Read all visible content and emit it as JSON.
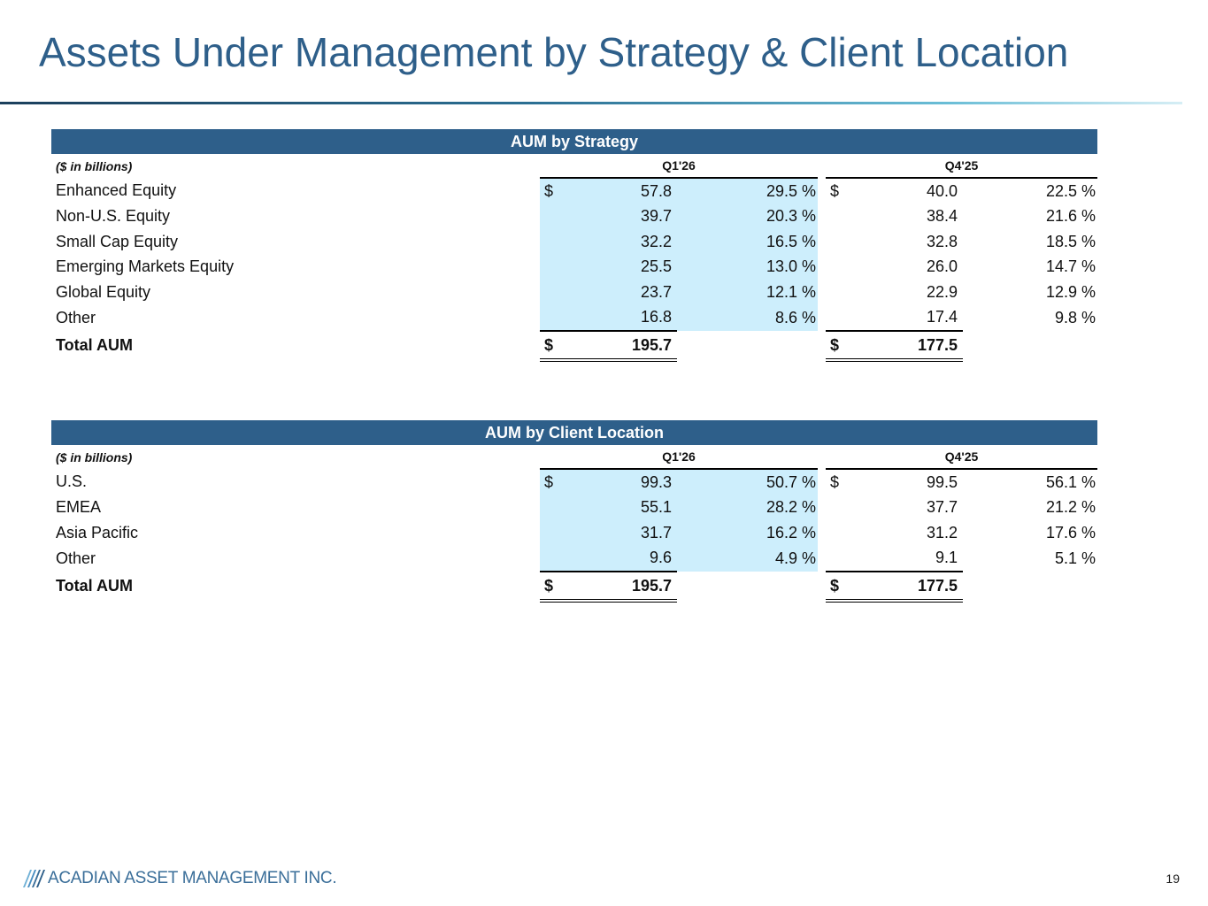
{
  "title": "Assets Under Management by Strategy & Client Location",
  "colors": {
    "title": "#2e5f8a",
    "banner": "#2e5f8a",
    "highlight": "#cdeefc"
  },
  "strategy_table": {
    "banner": "AUM by Strategy",
    "unit_note": "($ in billions)",
    "periods": [
      "Q1'26",
      "Q4'25"
    ],
    "rows": [
      {
        "label": "Enhanced Equity",
        "q1_dollar": "$",
        "q1_value": "57.8",
        "q1_pct": "29.5 %",
        "q4_dollar": "$",
        "q4_value": "40.0",
        "q4_pct": "22.5 %"
      },
      {
        "label": "Non-U.S. Equity",
        "q1_dollar": "",
        "q1_value": "39.7",
        "q1_pct": "20.3 %",
        "q4_dollar": "",
        "q4_value": "38.4",
        "q4_pct": "21.6 %"
      },
      {
        "label": "Small Cap Equity",
        "q1_dollar": "",
        "q1_value": "32.2",
        "q1_pct": "16.5 %",
        "q4_dollar": "",
        "q4_value": "32.8",
        "q4_pct": "18.5 %"
      },
      {
        "label": "Emerging Markets Equity",
        "q1_dollar": "",
        "q1_value": "25.5",
        "q1_pct": "13.0 %",
        "q4_dollar": "",
        "q4_value": "26.0",
        "q4_pct": "14.7 %"
      },
      {
        "label": "Global Equity",
        "q1_dollar": "",
        "q1_value": "23.7",
        "q1_pct": "12.1 %",
        "q4_dollar": "",
        "q4_value": "22.9",
        "q4_pct": "12.9 %"
      },
      {
        "label": "Other",
        "q1_dollar": "",
        "q1_value": "16.8",
        "q1_pct": "8.6 %",
        "q4_dollar": "",
        "q4_value": "17.4",
        "q4_pct": "9.8 %"
      }
    ],
    "total": {
      "label": "Total AUM",
      "q1_dollar": "$",
      "q1_value": "195.7",
      "q4_dollar": "$",
      "q4_value": "177.5"
    }
  },
  "location_table": {
    "banner": "AUM by Client Location",
    "unit_note": "($ in billions)",
    "periods": [
      "Q1'26",
      "Q4'25"
    ],
    "rows": [
      {
        "label": "U.S.",
        "q1_dollar": "$",
        "q1_value": "99.3",
        "q1_pct": "50.7 %",
        "q4_dollar": "$",
        "q4_value": "99.5",
        "q4_pct": "56.1 %"
      },
      {
        "label": "EMEA",
        "q1_dollar": "",
        "q1_value": "55.1",
        "q1_pct": "28.2 %",
        "q4_dollar": "",
        "q4_value": "37.7",
        "q4_pct": "21.2 %"
      },
      {
        "label": "Asia Pacific",
        "q1_dollar": "",
        "q1_value": "31.7",
        "q1_pct": "16.2 %",
        "q4_dollar": "",
        "q4_value": "31.2",
        "q4_pct": "17.6 %"
      },
      {
        "label": "Other",
        "q1_dollar": "",
        "q1_value": "9.6",
        "q1_pct": "4.9 %",
        "q4_dollar": "",
        "q4_value": "9.1",
        "q4_pct": "5.1 %"
      }
    ],
    "total": {
      "label": "Total AUM",
      "q1_dollar": "$",
      "q1_value": "195.7",
      "q4_dollar": "$",
      "q4_value": "177.5"
    }
  },
  "footer": {
    "company": "ACADIAN ASSET MANAGEMENT INC.",
    "logo_icon": "acadian-logo-icon",
    "page_number": "19"
  }
}
